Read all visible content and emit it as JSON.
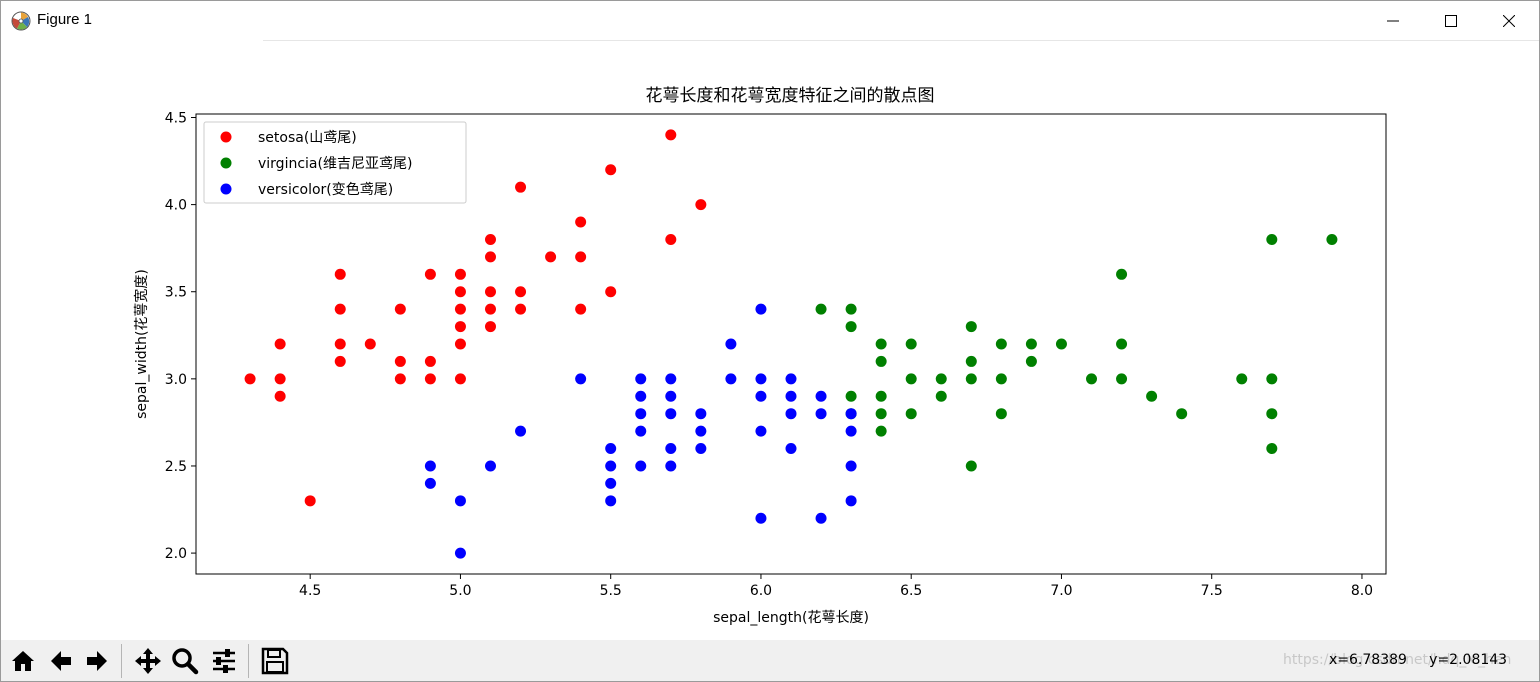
{
  "window": {
    "title": "Figure 1",
    "minimize_icon": "minimize-icon",
    "maximize_icon": "maximize-icon",
    "close_icon": "close-icon"
  },
  "toolbar": {
    "buttons": [
      {
        "name": "home-button",
        "icon": "home-icon"
      },
      {
        "name": "back-button",
        "icon": "arrow-left-icon"
      },
      {
        "name": "forward-button",
        "icon": "arrow-right-icon"
      },
      {
        "name": "pan-button",
        "icon": "move-icon"
      },
      {
        "name": "zoom-button",
        "icon": "magnifier-icon"
      },
      {
        "name": "configure-subplots-button",
        "icon": "sliders-icon"
      },
      {
        "name": "save-button",
        "icon": "floppy-disk-icon"
      }
    ],
    "coords": "x=6.78389     y=2.08143",
    "watermark": "https://blog.csdn.net/hdq_lc_hen"
  },
  "chart_data": {
    "type": "scatter",
    "title": "花萼长度和花萼宽度特征之间的散点图",
    "xlabel": "sepal_length(花萼长度)",
    "ylabel": "sepal_width(花萼宽度)",
    "xlim": [
      4.12,
      8.08
    ],
    "ylim": [
      1.88,
      4.52
    ],
    "xticks": [
      4.5,
      5.0,
      5.5,
      6.0,
      6.5,
      7.0,
      7.5,
      8.0
    ],
    "xtick_labels": [
      "4.5",
      "5.0",
      "5.5",
      "6.0",
      "6.5",
      "7.0",
      "7.5",
      "8.0"
    ],
    "yticks": [
      2.0,
      2.5,
      3.0,
      3.5,
      4.0,
      4.5
    ],
    "ytick_labels": [
      "2.0",
      "2.5",
      "3.0",
      "3.5",
      "4.0",
      "4.5"
    ],
    "legend_position": "upper-left",
    "grid": false,
    "series": [
      {
        "name": "setosa(山鸢尾)",
        "color": "#ff0000",
        "points": [
          [
            4.3,
            3.0
          ],
          [
            4.4,
            3.2
          ],
          [
            4.4,
            3.0
          ],
          [
            4.4,
            2.9
          ],
          [
            4.5,
            2.3
          ],
          [
            4.6,
            3.6
          ],
          [
            4.6,
            3.4
          ],
          [
            4.6,
            3.2
          ],
          [
            4.6,
            3.1
          ],
          [
            4.7,
            3.2
          ],
          [
            4.8,
            3.4
          ],
          [
            4.8,
            3.1
          ],
          [
            4.8,
            3.0
          ],
          [
            4.9,
            3.6
          ],
          [
            4.9,
            3.1
          ],
          [
            4.9,
            3.0
          ],
          [
            5.0,
            3.6
          ],
          [
            5.0,
            3.5
          ],
          [
            5.0,
            3.4
          ],
          [
            5.0,
            3.3
          ],
          [
            5.0,
            3.2
          ],
          [
            5.0,
            3.0
          ],
          [
            5.1,
            3.8
          ],
          [
            5.1,
            3.7
          ],
          [
            5.1,
            3.5
          ],
          [
            5.1,
            3.4
          ],
          [
            5.1,
            3.3
          ],
          [
            5.2,
            4.1
          ],
          [
            5.2,
            3.5
          ],
          [
            5.2,
            3.4
          ],
          [
            5.3,
            3.7
          ],
          [
            5.4,
            3.9
          ],
          [
            5.4,
            3.7
          ],
          [
            5.4,
            3.4
          ],
          [
            5.5,
            4.2
          ],
          [
            5.5,
            3.5
          ],
          [
            5.7,
            4.4
          ],
          [
            5.7,
            3.8
          ],
          [
            5.8,
            4.0
          ]
        ]
      },
      {
        "name": "virgincia(维吉尼亚鸢尾)",
        "color": "#008000",
        "points": [
          [
            6.2,
            3.4
          ],
          [
            6.3,
            3.4
          ],
          [
            6.3,
            3.3
          ],
          [
            6.3,
            2.9
          ],
          [
            6.3,
            2.8
          ],
          [
            6.4,
            3.2
          ],
          [
            6.4,
            3.1
          ],
          [
            6.4,
            2.9
          ],
          [
            6.4,
            2.8
          ],
          [
            6.4,
            2.7
          ],
          [
            6.5,
            3.2
          ],
          [
            6.5,
            3.0
          ],
          [
            6.5,
            2.8
          ],
          [
            6.6,
            3.0
          ],
          [
            6.6,
            2.9
          ],
          [
            6.7,
            3.3
          ],
          [
            6.7,
            3.1
          ],
          [
            6.7,
            3.0
          ],
          [
            6.7,
            2.5
          ],
          [
            6.8,
            3.2
          ],
          [
            6.8,
            3.0
          ],
          [
            6.8,
            2.8
          ],
          [
            6.9,
            3.2
          ],
          [
            6.9,
            3.1
          ],
          [
            7.0,
            3.2
          ],
          [
            7.1,
            3.0
          ],
          [
            7.2,
            3.6
          ],
          [
            7.2,
            3.2
          ],
          [
            7.2,
            3.0
          ],
          [
            7.3,
            2.9
          ],
          [
            7.4,
            2.8
          ],
          [
            7.6,
            3.0
          ],
          [
            7.7,
            3.8
          ],
          [
            7.7,
            3.0
          ],
          [
            7.7,
            2.8
          ],
          [
            7.7,
            2.6
          ],
          [
            7.9,
            3.8
          ]
        ]
      },
      {
        "name": "versicolor(变色鸢尾)",
        "color": "#0000ff",
        "points": [
          [
            4.9,
            2.5
          ],
          [
            4.9,
            2.4
          ],
          [
            5.0,
            2.3
          ],
          [
            5.0,
            2.0
          ],
          [
            5.1,
            2.5
          ],
          [
            5.2,
            2.7
          ],
          [
            5.4,
            3.0
          ],
          [
            5.5,
            2.6
          ],
          [
            5.5,
            2.5
          ],
          [
            5.5,
            2.4
          ],
          [
            5.5,
            2.3
          ],
          [
            5.6,
            3.0
          ],
          [
            5.6,
            2.9
          ],
          [
            5.6,
            2.8
          ],
          [
            5.6,
            2.7
          ],
          [
            5.6,
            2.5
          ],
          [
            5.7,
            3.0
          ],
          [
            5.7,
            2.9
          ],
          [
            5.7,
            2.8
          ],
          [
            5.7,
            2.6
          ],
          [
            5.7,
            2.5
          ],
          [
            5.8,
            2.8
          ],
          [
            5.8,
            2.7
          ],
          [
            5.8,
            2.6
          ],
          [
            5.9,
            3.2
          ],
          [
            5.9,
            3.0
          ],
          [
            6.0,
            3.4
          ],
          [
            6.0,
            3.0
          ],
          [
            6.0,
            2.9
          ],
          [
            6.0,
            2.7
          ],
          [
            6.0,
            2.2
          ],
          [
            6.1,
            3.0
          ],
          [
            6.1,
            2.9
          ],
          [
            6.1,
            2.8
          ],
          [
            6.1,
            2.6
          ],
          [
            6.2,
            2.9
          ],
          [
            6.2,
            2.8
          ],
          [
            6.2,
            2.2
          ],
          [
            6.3,
            2.8
          ],
          [
            6.3,
            2.7
          ],
          [
            6.3,
            2.5
          ],
          [
            6.3,
            2.3
          ]
        ]
      }
    ]
  }
}
